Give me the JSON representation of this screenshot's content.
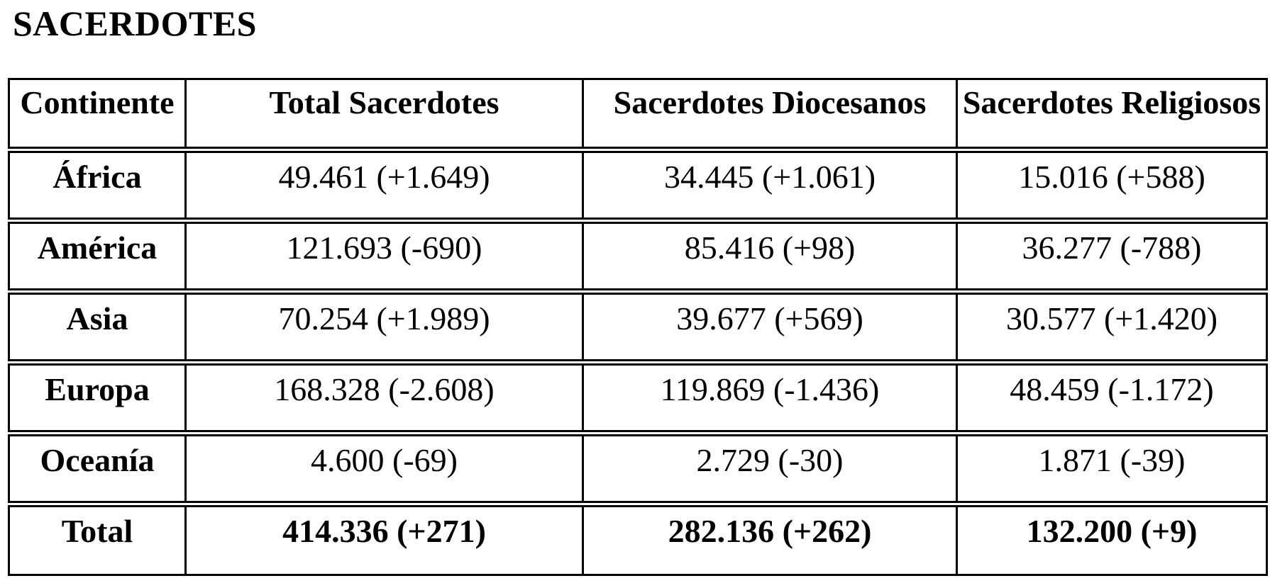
{
  "page": {
    "title": "SACERDOTES"
  },
  "colors": {
    "text": "#000000",
    "background": "#ffffff",
    "border": "#000000"
  },
  "table": {
    "columns": [
      "Continente",
      "Total Sacerdotes",
      "Sacerdotes Diocesanos",
      "Sacerdotes Religiosos"
    ],
    "rows": [
      {
        "continent": "África",
        "total": "49.461 (+1.649)",
        "diocesanos": "34.445 (+1.061)",
        "religiosos": "15.016 (+588)"
      },
      {
        "continent": "América",
        "total": "121.693 (-690)",
        "diocesanos": "85.416 (+98)",
        "religiosos": "36.277 (-788)"
      },
      {
        "continent": "Asia",
        "total": "70.254 (+1.989)",
        "diocesanos": "39.677 (+569)",
        "religiosos": "30.577 (+1.420)"
      },
      {
        "continent": "Europa",
        "total": "168.328 (-2.608)",
        "diocesanos": "119.869 (-1.436)",
        "religiosos": "48.459 (-1.172)"
      },
      {
        "continent": "Oceanía",
        "total": "4.600 (-69)",
        "diocesanos": "2.729 (-30)",
        "religiosos": "1.871 (-39)"
      }
    ],
    "total_row": {
      "continent": "Total",
      "total": "414.336 (+271)",
      "diocesanos": "282.136 (+262)",
      "religiosos": "132.200 (+9)"
    }
  }
}
